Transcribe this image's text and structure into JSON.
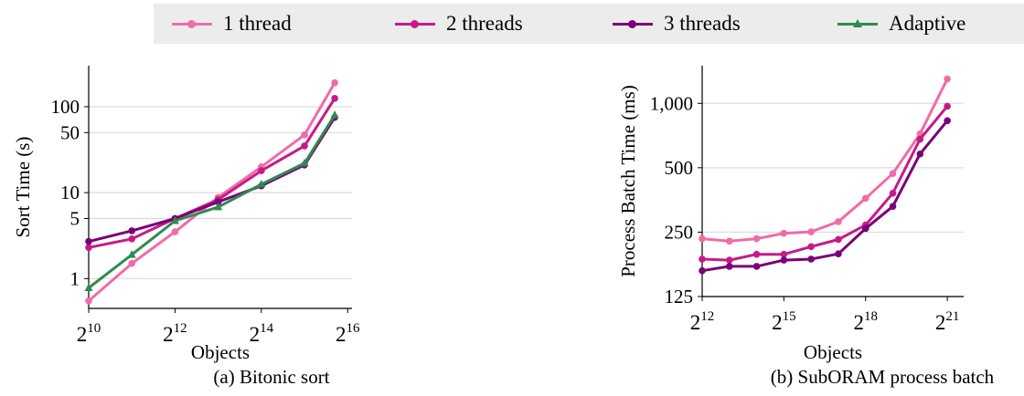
{
  "legend": [
    {
      "label": "1 thread",
      "color": "#f06ba8",
      "marker": "circle"
    },
    {
      "label": "2 threads",
      "color": "#c51b8a",
      "marker": "circle"
    },
    {
      "label": "3 threads",
      "color": "#7a0177",
      "marker": "circle"
    },
    {
      "label": "Adaptive",
      "color": "#2e8b4f",
      "marker": "triangle"
    }
  ],
  "chart_data": [
    {
      "type": "line",
      "caption": "(a) Bitonic sort",
      "xlabel": "Objects",
      "ylabel": "Sort Time (s)",
      "xscale": "log2",
      "yscale": "log",
      "xlim": [
        10,
        16.1
      ],
      "ylim": [
        0.45,
        300
      ],
      "x_ticks": [
        10,
        12,
        14,
        16
      ],
      "x_tick_labels": [
        "2^10",
        "2^12",
        "2^14",
        "2^16"
      ],
      "y_ticks": [
        1,
        5,
        10,
        50,
        100
      ],
      "y_tick_labels": [
        "1",
        "5",
        "10",
        "50",
        "100"
      ],
      "grid": "horizontal",
      "x": [
        10,
        11,
        12,
        13,
        14,
        15,
        15.7
      ],
      "series": [
        {
          "name": "1 thread",
          "values": [
            0.55,
            1.5,
            3.5,
            8.8,
            20,
            47,
            190
          ]
        },
        {
          "name": "2 threads",
          "values": [
            2.3,
            2.9,
            5.0,
            8.3,
            18,
            35,
            125
          ]
        },
        {
          "name": "3 threads",
          "values": [
            2.7,
            3.6,
            5.0,
            7.8,
            12,
            21,
            75
          ]
        },
        {
          "name": "Adaptive",
          "values": [
            0.78,
            1.9,
            4.7,
            6.8,
            12.5,
            22,
            80
          ]
        }
      ]
    },
    {
      "type": "line",
      "caption": "(b) SubORAM process batch",
      "xlabel": "Objects",
      "ylabel": "Process Batch Time (ms)",
      "xscale": "log2",
      "yscale": "log",
      "xlim": [
        12,
        21.6
      ],
      "ylim": [
        125,
        1500
      ],
      "x_ticks": [
        12,
        15,
        18,
        21
      ],
      "x_tick_labels": [
        "2^12",
        "2^15",
        "2^18",
        "2^21"
      ],
      "y_ticks": [
        125,
        250,
        500,
        1000
      ],
      "y_tick_labels": [
        "125",
        "250",
        "500",
        "1,000"
      ],
      "grid": "horizontal",
      "x": [
        12,
        13,
        14,
        15,
        16,
        17,
        18,
        19,
        20,
        21
      ],
      "series": [
        {
          "name": "1 thread",
          "values": [
            233,
            227,
            233,
            247,
            251,
            280,
            360,
            470,
            720,
            1300
          ]
        },
        {
          "name": "2 threads",
          "values": [
            187,
            185,
            197,
            197,
            214,
            231,
            270,
            380,
            680,
            970
          ]
        },
        {
          "name": "3 threads",
          "values": [
            165,
            173,
            173,
            185,
            187,
            198,
            260,
            330,
            580,
            830
          ]
        }
      ]
    }
  ]
}
